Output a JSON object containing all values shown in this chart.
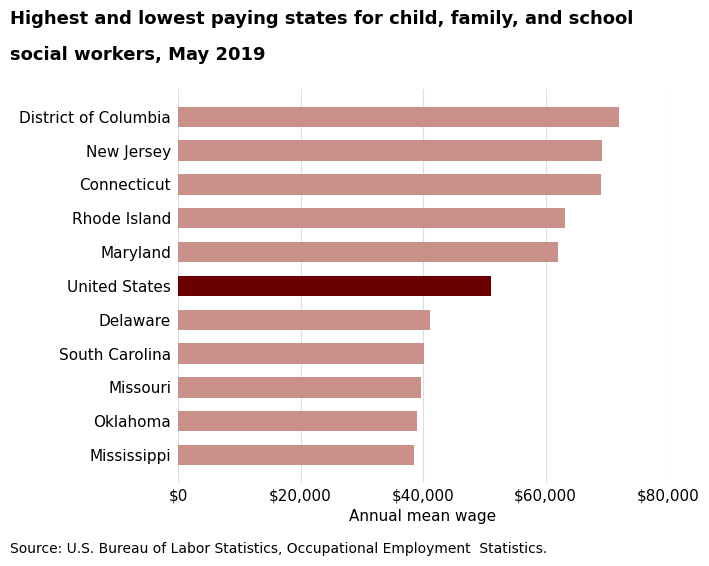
{
  "categories": [
    "District of Columbia",
    "New Jersey",
    "Connecticut",
    "Rhode Island",
    "Maryland",
    "United States",
    "Delaware",
    "South Carolina",
    "Missouri",
    "Oklahoma",
    "Mississippi"
  ],
  "values": [
    72030,
    69200,
    69100,
    63200,
    62100,
    51060,
    41200,
    40100,
    39600,
    39100,
    38600
  ],
  "bar_colors": [
    "#c9908a",
    "#c9908a",
    "#c9908a",
    "#c9908a",
    "#c9908a",
    "#6b0000",
    "#c9908a",
    "#c9908a",
    "#c9908a",
    "#c9908a",
    "#c9908a"
  ],
  "title_line1": "Highest and lowest paying states for child, family, and school",
  "title_line2": "social workers, May 2019",
  "xlabel": "Annual mean wage",
  "xlim": [
    0,
    80000
  ],
  "xtick_values": [
    0,
    20000,
    40000,
    60000,
    80000
  ],
  "xtick_labels": [
    "$0",
    "$20,000",
    "$40,000",
    "$60,000",
    "$80,000"
  ],
  "title_fontsize": 13,
  "label_fontsize": 11,
  "tick_fontsize": 11,
  "source_text": "Source: U.S. Bureau of Labor Statistics, Occupational Employment  Statistics.",
  "source_fontsize": 10,
  "background_color": "#ffffff",
  "grid_color": "#dddddd",
  "figure_width": 7.0,
  "figure_height": 6.07
}
